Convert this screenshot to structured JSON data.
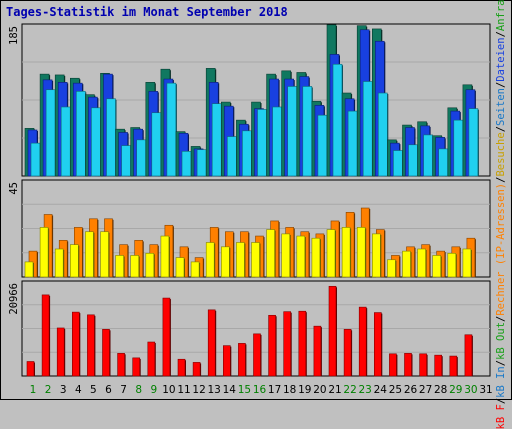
{
  "title": "Tages-Statistik im Monat September 2018",
  "chart_data": [
    {
      "type": "bar",
      "panel": "top",
      "ymax_label": "185",
      "ylim": [
        0,
        185
      ],
      "categories": [
        "1",
        "2",
        "3",
        "4",
        "5",
        "6",
        "7",
        "8",
        "9",
        "10",
        "11",
        "12",
        "13",
        "14",
        "15",
        "16",
        "17",
        "18",
        "19",
        "20",
        "21",
        "22",
        "23",
        "24",
        "25",
        "26",
        "27",
        "28",
        "29",
        "30",
        "31"
      ],
      "series": [
        {
          "name": "Anfragen",
          "color": "#107860",
          "values": [
            58,
            124,
            123,
            119,
            99,
            125,
            57,
            59,
            114,
            130,
            54,
            36,
            131,
            90,
            68,
            90,
            124,
            128,
            126,
            91,
            184,
            101,
            183,
            179,
            44,
            62,
            66,
            49,
            83,
            111,
            0
          ]
        },
        {
          "name": "Dateien",
          "color": "#1840e0",
          "values": [
            56,
            117,
            114,
            113,
            96,
            124,
            53,
            57,
            103,
            118,
            52,
            33,
            114,
            85,
            63,
            82,
            118,
            118,
            121,
            86,
            148,
            94,
            178,
            164,
            40,
            59,
            61,
            47,
            79,
            105,
            0
          ]
        },
        {
          "name": "Seiten",
          "color": "#20d0f0",
          "values": [
            40,
            105,
            84,
            103,
            83,
            94,
            37,
            44,
            77,
            113,
            30,
            32,
            88,
            48,
            55,
            81,
            84,
            109,
            109,
            74,
            136,
            79,
            115,
            101,
            31,
            38,
            50,
            33,
            68,
            82,
            0
          ]
        }
      ]
    },
    {
      "type": "bar",
      "panel": "middle",
      "ymax_label": "45",
      "ylim": [
        0,
        45
      ],
      "categories": [
        "1",
        "2",
        "3",
        "4",
        "5",
        "6",
        "7",
        "8",
        "9",
        "10",
        "11",
        "12",
        "13",
        "14",
        "15",
        "16",
        "17",
        "18",
        "19",
        "20",
        "21",
        "22",
        "23",
        "24",
        "25",
        "26",
        "27",
        "28",
        "29",
        "30",
        "31"
      ],
      "series": [
        {
          "name": "Besuche",
          "color": "#ff8000",
          "values": [
            12,
            29,
            17,
            23,
            27,
            27,
            15,
            17,
            15,
            24,
            14,
            9,
            23,
            21,
            21,
            19,
            26,
            23,
            21,
            20,
            26,
            30,
            32,
            22,
            10,
            14,
            15,
            12,
            14,
            18,
            0
          ]
        },
        {
          "name": "Rechner (IP-Adressen)",
          "color": "#ffff00",
          "values": [
            7,
            23,
            13,
            15,
            21,
            21,
            10,
            10,
            11,
            19,
            9,
            7,
            16,
            14,
            16,
            16,
            22,
            20,
            19,
            18,
            22,
            23,
            23,
            20,
            8,
            12,
            13,
            10,
            11,
            13,
            0
          ]
        }
      ]
    },
    {
      "type": "bar",
      "panel": "bottom",
      "ymax_label": "20966",
      "ylim": [
        0,
        20966
      ],
      "categories": [
        "1",
        "2",
        "3",
        "4",
        "5",
        "6",
        "7",
        "8",
        "9",
        "10",
        "11",
        "12",
        "13",
        "14",
        "15",
        "16",
        "17",
        "18",
        "19",
        "20",
        "21",
        "22",
        "23",
        "24",
        "25",
        "26",
        "27",
        "28",
        "29",
        "30",
        "31"
      ],
      "series": [
        {
          "name": "kB F",
          "color": "#ff0000",
          "values": [
            3200,
            17900,
            10600,
            14100,
            13500,
            10300,
            5000,
            4000,
            7500,
            17200,
            3700,
            3000,
            14600,
            6700,
            7200,
            9300,
            13400,
            14200,
            14300,
            11000,
            19800,
            10300,
            15200,
            14000,
            4900,
            5000,
            4900,
            4600,
            4400,
            9100,
            0
          ]
        }
      ]
    }
  ],
  "x_label_colors": [
    "green",
    "green",
    "black",
    "black",
    "black",
    "black",
    "black",
    "green",
    "green",
    "black",
    "black",
    "black",
    "black",
    "black",
    "green",
    "green",
    "black",
    "black",
    "black",
    "black",
    "black",
    "green",
    "green",
    "black",
    "black",
    "black",
    "black",
    "black",
    "green",
    "green",
    "black"
  ],
  "legend": {
    "parts": [
      {
        "text": "kB F",
        "color": "#ff0000"
      },
      {
        "text": "/",
        "color": "#000000"
      },
      {
        "text": "kB In",
        "color": "#1878c8"
      },
      {
        "text": "/",
        "color": "#000000"
      },
      {
        "text": "kB Out",
        "color": "#18a018"
      },
      {
        "text": "/",
        "color": "#000000"
      },
      {
        "text": "Rechner (IP-Adressen)",
        "color": "#ff8000"
      },
      {
        "text": "/",
        "color": "#000000"
      },
      {
        "text": "Besuche",
        "color": "#c8a000"
      },
      {
        "text": "/",
        "color": "#000000"
      },
      {
        "text": "Seiten",
        "color": "#1878c8"
      },
      {
        "text": "/",
        "color": "#000000"
      },
      {
        "text": "Dateien",
        "color": "#1840e0"
      },
      {
        "text": "/",
        "color": "#000000"
      },
      {
        "text": "Anfragen",
        "color": "#18a018"
      }
    ]
  },
  "colors": {
    "background": "#c0c0c0",
    "plot_background": "#c0c0c0",
    "title": "#0000b0",
    "weekend_label": "#008000",
    "weekday_label": "#000000"
  }
}
